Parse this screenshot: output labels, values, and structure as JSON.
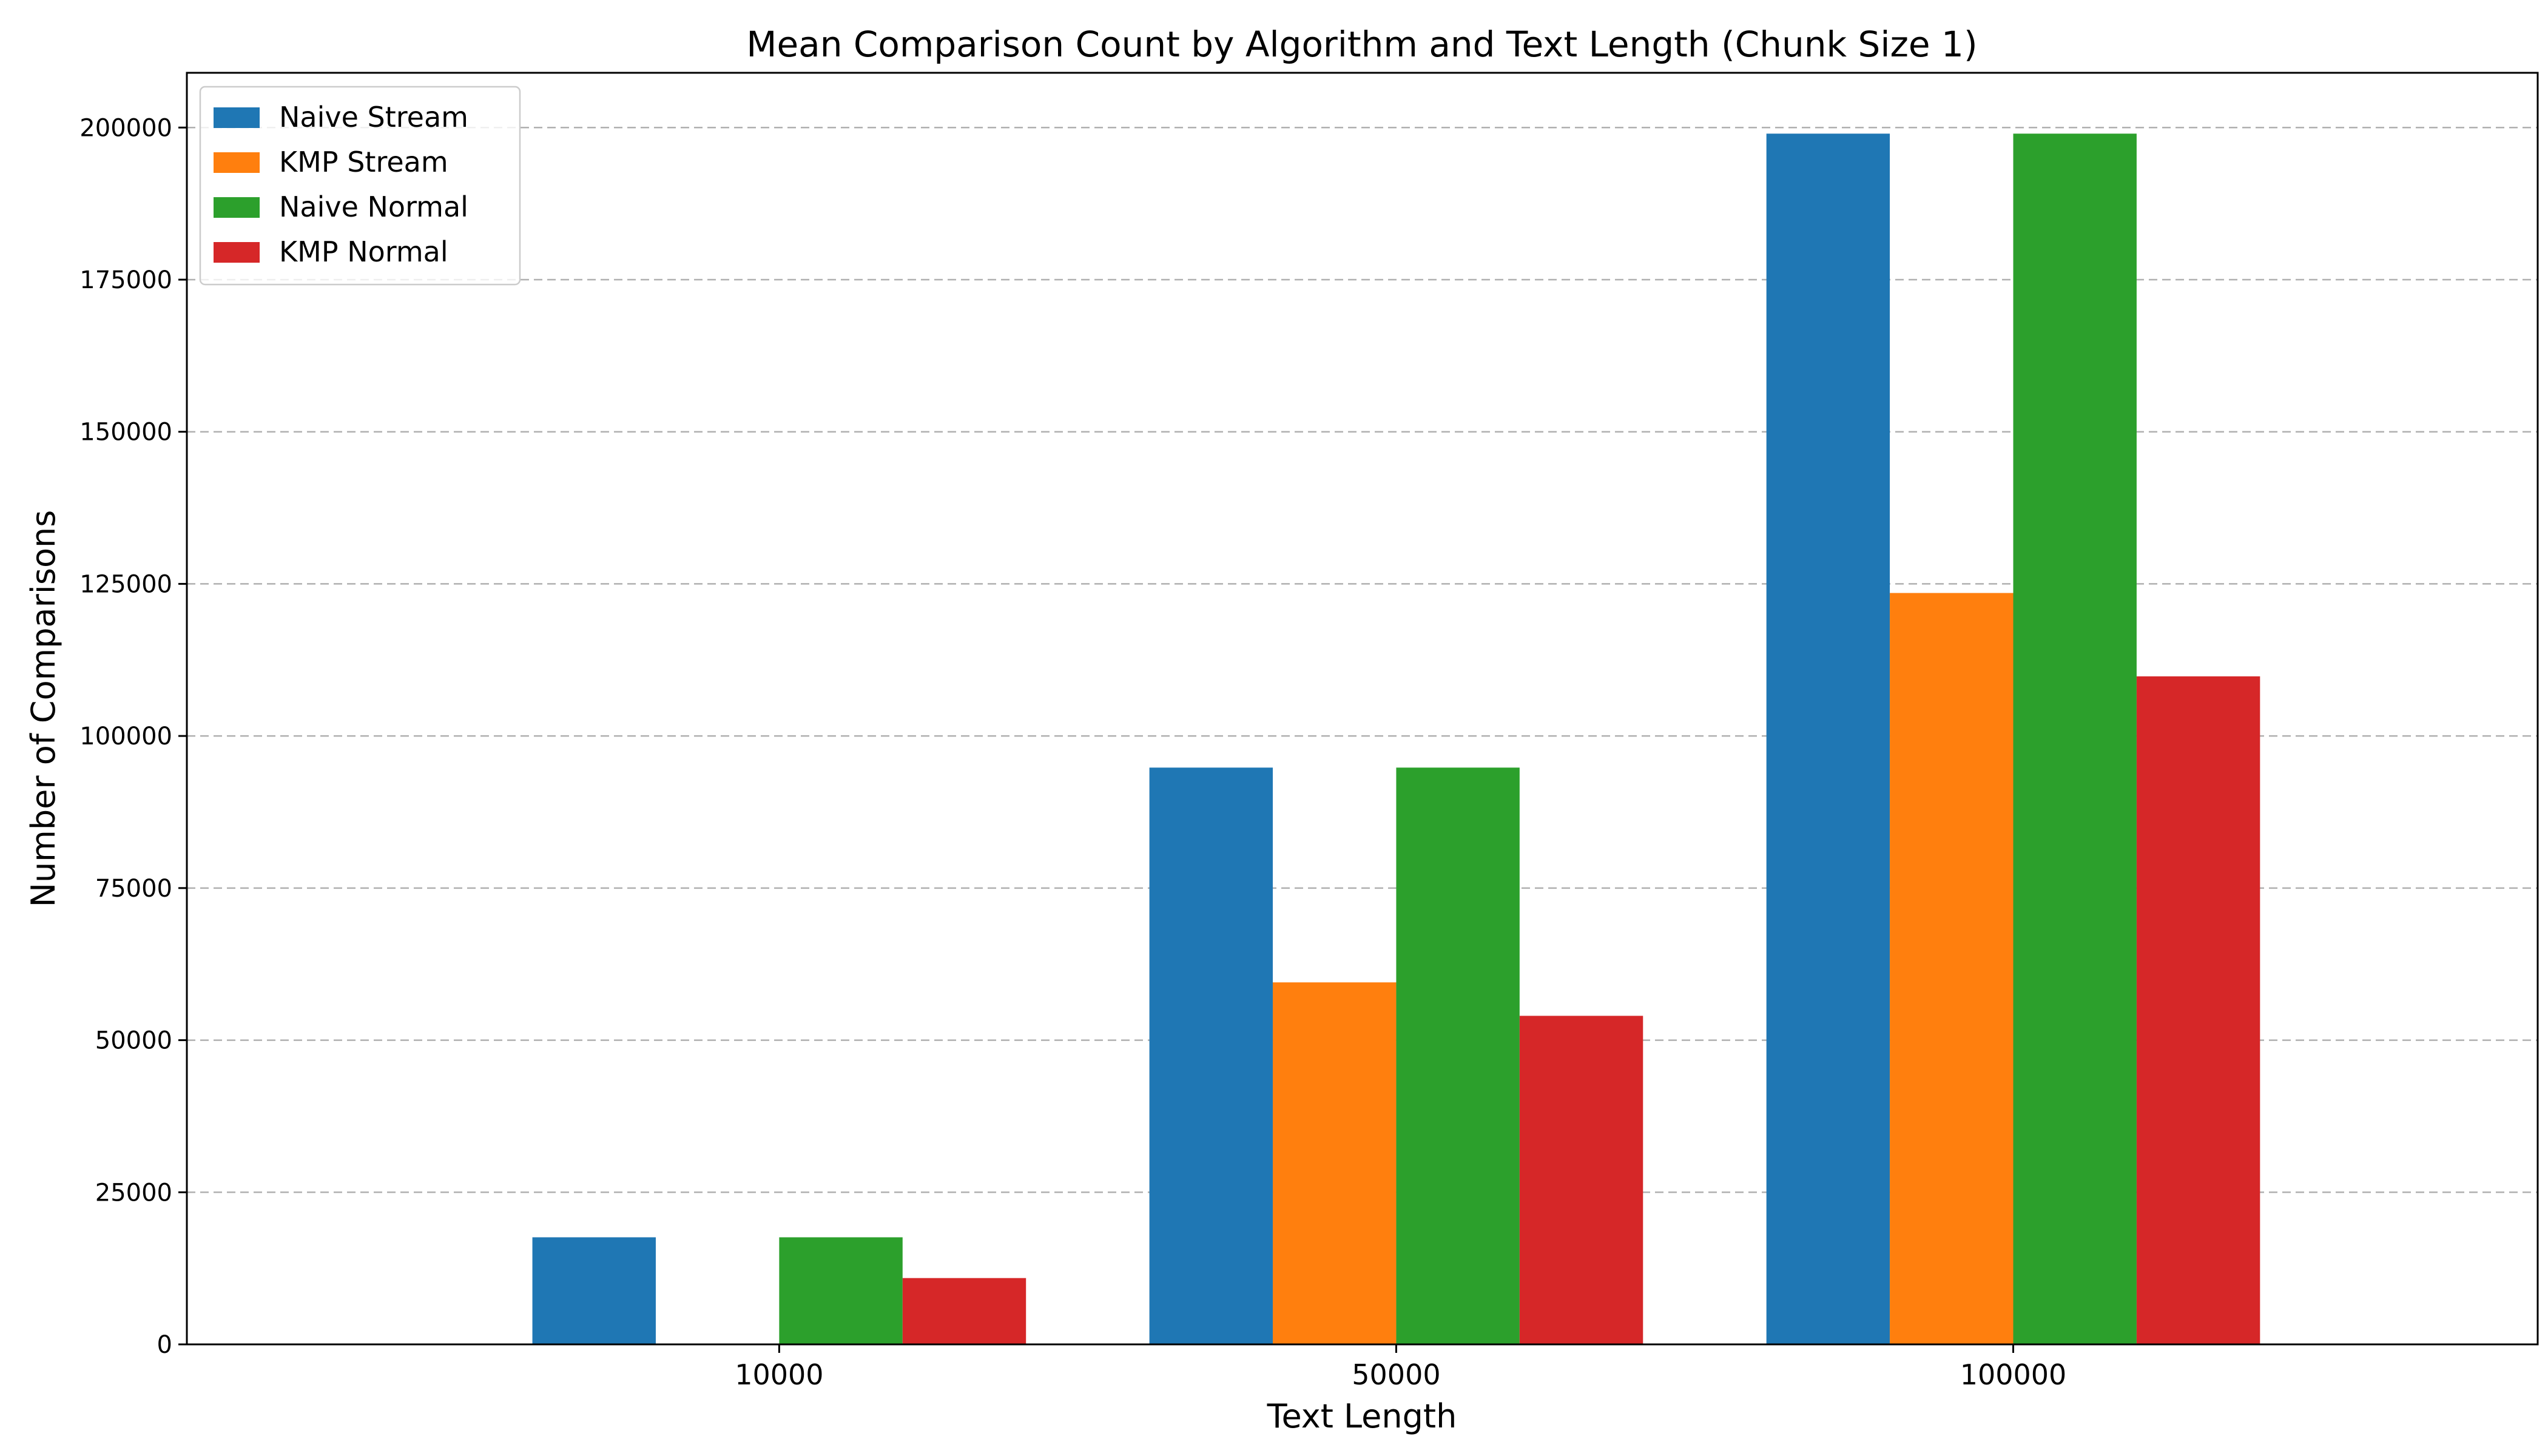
{
  "chart_data": {
    "type": "bar",
    "title": "Mean Comparison Count by Algorithm and Text Length (Chunk Size 1)",
    "xlabel": "Text Length",
    "ylabel": "Number of Comparisons",
    "categories": [
      "10000",
      "50000",
      "100000"
    ],
    "ylim": [
      0,
      209000
    ],
    "yticks": [
      0,
      25000,
      50000,
      75000,
      100000,
      125000,
      150000,
      175000,
      200000
    ],
    "grid": "y-axis dashed",
    "legend_position": "top-left",
    "series": [
      {
        "name": "Naive Stream",
        "color": "#1f77b4",
        "values": [
          17600,
          94800,
          199000
        ]
      },
      {
        "name": "KMP Stream",
        "color": "#ff7f0e",
        "values": [
          0,
          59500,
          123500
        ]
      },
      {
        "name": "Naive Normal",
        "color": "#2ca02c",
        "values": [
          17600,
          94800,
          199000
        ]
      },
      {
        "name": "KMP Normal",
        "color": "#d62728",
        "values": [
          10900,
          54000,
          109800
        ]
      }
    ]
  }
}
